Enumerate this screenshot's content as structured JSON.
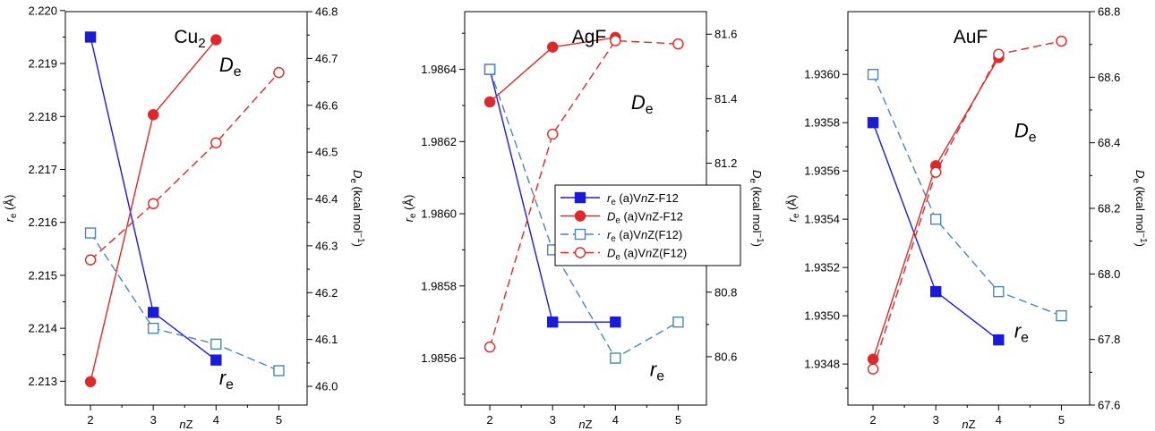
{
  "chart_data": [
    {
      "type": "line",
      "title": "Cu2",
      "title_base": "Cu",
      "title_sub": "2",
      "xlabel": "nZ",
      "ylabel_left": "re (Å)",
      "ylabel_right": "De (kcal mol−1)",
      "x_ticks": [
        "2",
        "3",
        "4",
        "5"
      ],
      "xlim": [
        1.6,
        5.45
      ],
      "y_left": {
        "lim": [
          2.21255,
          2.21998
        ],
        "ticks": [
          "2.213",
          "2.214",
          "2.215",
          "2.216",
          "2.217",
          "2.218",
          "2.219",
          "2.220"
        ]
      },
      "y_right": {
        "lim": [
          45.96,
          46.8
        ],
        "ticks": [
          "46.0",
          "46.1",
          "46.2",
          "46.3",
          "46.4",
          "46.5",
          "46.6",
          "46.7",
          "46.8"
        ]
      },
      "series": [
        {
          "id": "re_f12",
          "axis": "left",
          "x": [
            2,
            3,
            4
          ],
          "y": [
            2.2195,
            2.2143,
            2.2134
          ]
        },
        {
          "id": "de_f12",
          "axis": "right",
          "x": [
            2,
            3,
            4
          ],
          "y": [
            46.01,
            46.58,
            46.74
          ]
        },
        {
          "id": "re_pf12",
          "axis": "left",
          "x": [
            2,
            3,
            4,
            5
          ],
          "y": [
            2.2158,
            2.214,
            2.2137,
            2.2132
          ]
        },
        {
          "id": "de_pf12",
          "axis": "right",
          "x": [
            2,
            3,
            4,
            5
          ],
          "y": [
            46.27,
            46.39,
            46.52,
            46.67
          ]
        }
      ],
      "annotations": [
        {
          "base": "D",
          "sub": "e",
          "x": 4.05,
          "axis": "left",
          "y": 2.21885
        },
        {
          "base": "r",
          "sub": "e",
          "x": 4.05,
          "axis": "left",
          "y": 2.21294
        }
      ]
    },
    {
      "type": "line",
      "title": "AgF",
      "title_base": "AgF",
      "title_sub": "",
      "xlabel": "nZ",
      "ylabel_left": "re (Å)",
      "ylabel_right": "De (kcal mol−1)",
      "x_ticks": [
        "2",
        "3",
        "4",
        "5"
      ],
      "xlim": [
        1.6,
        5.45
      ],
      "y_left": {
        "lim": [
          1.98547,
          1.98656
        ],
        "ticks": [
          "1.9856",
          "1.9858",
          "1.9860",
          "1.9862",
          "1.9864"
        ]
      },
      "y_right": {
        "lim": [
          80.45,
          81.67
        ],
        "ticks": [
          "80.6",
          "80.8",
          "81.0",
          "81.2",
          "81.4",
          "81.6"
        ]
      },
      "series": [
        {
          "id": "re_f12",
          "axis": "left",
          "x": [
            2,
            3,
            4
          ],
          "y": [
            1.9864,
            1.9857,
            1.9857
          ]
        },
        {
          "id": "de_f12",
          "axis": "right",
          "x": [
            2,
            3,
            4
          ],
          "y": [
            81.39,
            81.56,
            81.59
          ]
        },
        {
          "id": "re_pf12",
          "axis": "left",
          "x": [
            2,
            3,
            4,
            5
          ],
          "y": [
            1.9864,
            1.9859,
            1.9856,
            1.9857
          ]
        },
        {
          "id": "de_pf12",
          "axis": "right",
          "x": [
            2,
            3,
            4,
            5
          ],
          "y": [
            80.63,
            81.29,
            81.58,
            81.57
          ]
        }
      ],
      "annotations": [
        {
          "base": "D",
          "sub": "e",
          "x": 4.25,
          "axis": "left",
          "y": 1.98629
        },
        {
          "base": "r",
          "sub": "e",
          "x": 4.55,
          "axis": "left",
          "y": 1.98555
        }
      ]
    },
    {
      "type": "line",
      "title": "AuF",
      "title_base": "AuF",
      "title_sub": "",
      "xlabel": "nZ",
      "ylabel_left": "re (Å)",
      "ylabel_right": "De (kcal mol−1)",
      "x_ticks": [
        "2",
        "3",
        "4",
        "5"
      ],
      "xlim": [
        1.6,
        5.45
      ],
      "y_left": {
        "lim": [
          1.93463,
          1.93626
        ],
        "ticks": [
          "1.9348",
          "1.9350",
          "1.9352",
          "1.9354",
          "1.9356",
          "1.9358",
          "1.9360"
        ]
      },
      "y_right": {
        "lim": [
          67.6,
          68.8
        ],
        "ticks": [
          "67.6",
          "67.8",
          "68.0",
          "68.2",
          "68.4",
          "68.6",
          "68.8"
        ]
      },
      "series": [
        {
          "id": "re_f12",
          "axis": "left",
          "x": [
            2,
            3,
            4
          ],
          "y": [
            1.9358,
            1.9351,
            1.9349
          ]
        },
        {
          "id": "de_f12",
          "axis": "right",
          "x": [
            2,
            3,
            4
          ],
          "y": [
            67.74,
            68.33,
            68.66
          ]
        },
        {
          "id": "re_pf12",
          "axis": "left",
          "x": [
            2,
            3,
            4,
            5
          ],
          "y": [
            1.936,
            1.9354,
            1.9351,
            1.935
          ]
        },
        {
          "id": "de_pf12",
          "axis": "right",
          "x": [
            2,
            3,
            4,
            5
          ],
          "y": [
            67.71,
            68.31,
            68.67,
            68.71
          ]
        }
      ],
      "annotations": [
        {
          "base": "D",
          "sub": "e",
          "x": 4.25,
          "axis": "left",
          "y": 1.93574
        },
        {
          "base": "r",
          "sub": "e",
          "x": 4.25,
          "axis": "left",
          "y": 1.93491
        }
      ]
    }
  ],
  "series_styles": {
    "re_f12": {
      "color": "#1a1adc",
      "marker": "square",
      "filled": true,
      "dashed": false
    },
    "de_f12": {
      "color": "#e02828",
      "marker": "circle",
      "filled": true,
      "dashed": false
    },
    "re_pf12": {
      "color": "#4a86b4",
      "marker": "square",
      "filled": false,
      "dashed": true
    },
    "de_pf12": {
      "color": "#e02828",
      "marker": "circle",
      "filled": false,
      "dashed": true
    }
  },
  "legend": {
    "panel": 1,
    "entries": [
      {
        "series": "re_f12",
        "sym": "r",
        "sub": "e",
        "pre": " (a)V",
        "n": "n",
        "post": "Z-F12"
      },
      {
        "series": "de_f12",
        "sym": "D",
        "sub": "e",
        "pre": " (a)V",
        "n": "n",
        "post": "Z-F12"
      },
      {
        "series": "re_pf12",
        "sym": "r",
        "sub": "e",
        "pre": " (a)V",
        "n": "n",
        "post": "Z(F12)"
      },
      {
        "series": "de_pf12",
        "sym": "D",
        "sub": "e",
        "pre": " (a)V",
        "n": "n",
        "post": "Z(F12)"
      }
    ]
  }
}
